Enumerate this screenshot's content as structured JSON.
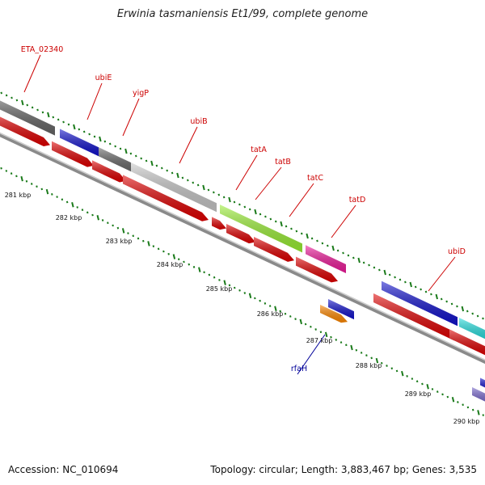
{
  "title": "Erwinia tasmaniensis Et1/99, complete genome",
  "footer": {
    "accession": "Accession: NC_010694",
    "summary": "Topology: circular; Length: 3,883,467 bp; Genes: 3,535"
  },
  "colors": {
    "backbone": "#8a8a8a",
    "cds_forward": "#e00000",
    "tick": "#1a7a1a",
    "label_line": "#cc0000",
    "label_line_rfaH": "#000099"
  },
  "kbp_labels": [
    "281 kbp",
    "282 kbp",
    "283 kbp",
    "284 kbp",
    "285 kbp",
    "286 kbp",
    "287 kbp",
    "288 kbp",
    "289 kbp",
    "290 kbp"
  ],
  "gene_labels": [
    {
      "name": "ETA_02340",
      "color": "#cc0000"
    },
    {
      "name": "ubiE",
      "color": "#cc0000"
    },
    {
      "name": "yigP",
      "color": "#cc0000"
    },
    {
      "name": "ubiB",
      "color": "#cc0000"
    },
    {
      "name": "tatA",
      "color": "#cc0000"
    },
    {
      "name": "tatB",
      "color": "#cc0000"
    },
    {
      "name": "tatC",
      "color": "#cc0000"
    },
    {
      "name": "tatD",
      "color": "#cc0000"
    },
    {
      "name": "ubiD",
      "color": "#cc0000"
    },
    {
      "name": "rfaH",
      "color": "#000099"
    }
  ],
  "gene_features": [
    {
      "color": "#666666"
    },
    {
      "color": "#1111cc"
    },
    {
      "color": "#6a6a6a"
    },
    {
      "color": "#c8c8c8"
    },
    {
      "color": "#99ee33"
    },
    {
      "color": "#ee1a9a"
    },
    {
      "color": "#1111cc"
    },
    {
      "color": "#22dddd"
    },
    {
      "color": "#1111cc"
    },
    {
      "color": "#ff8800"
    },
    {
      "color": "#1111cc"
    },
    {
      "color": "#7766cc"
    }
  ]
}
